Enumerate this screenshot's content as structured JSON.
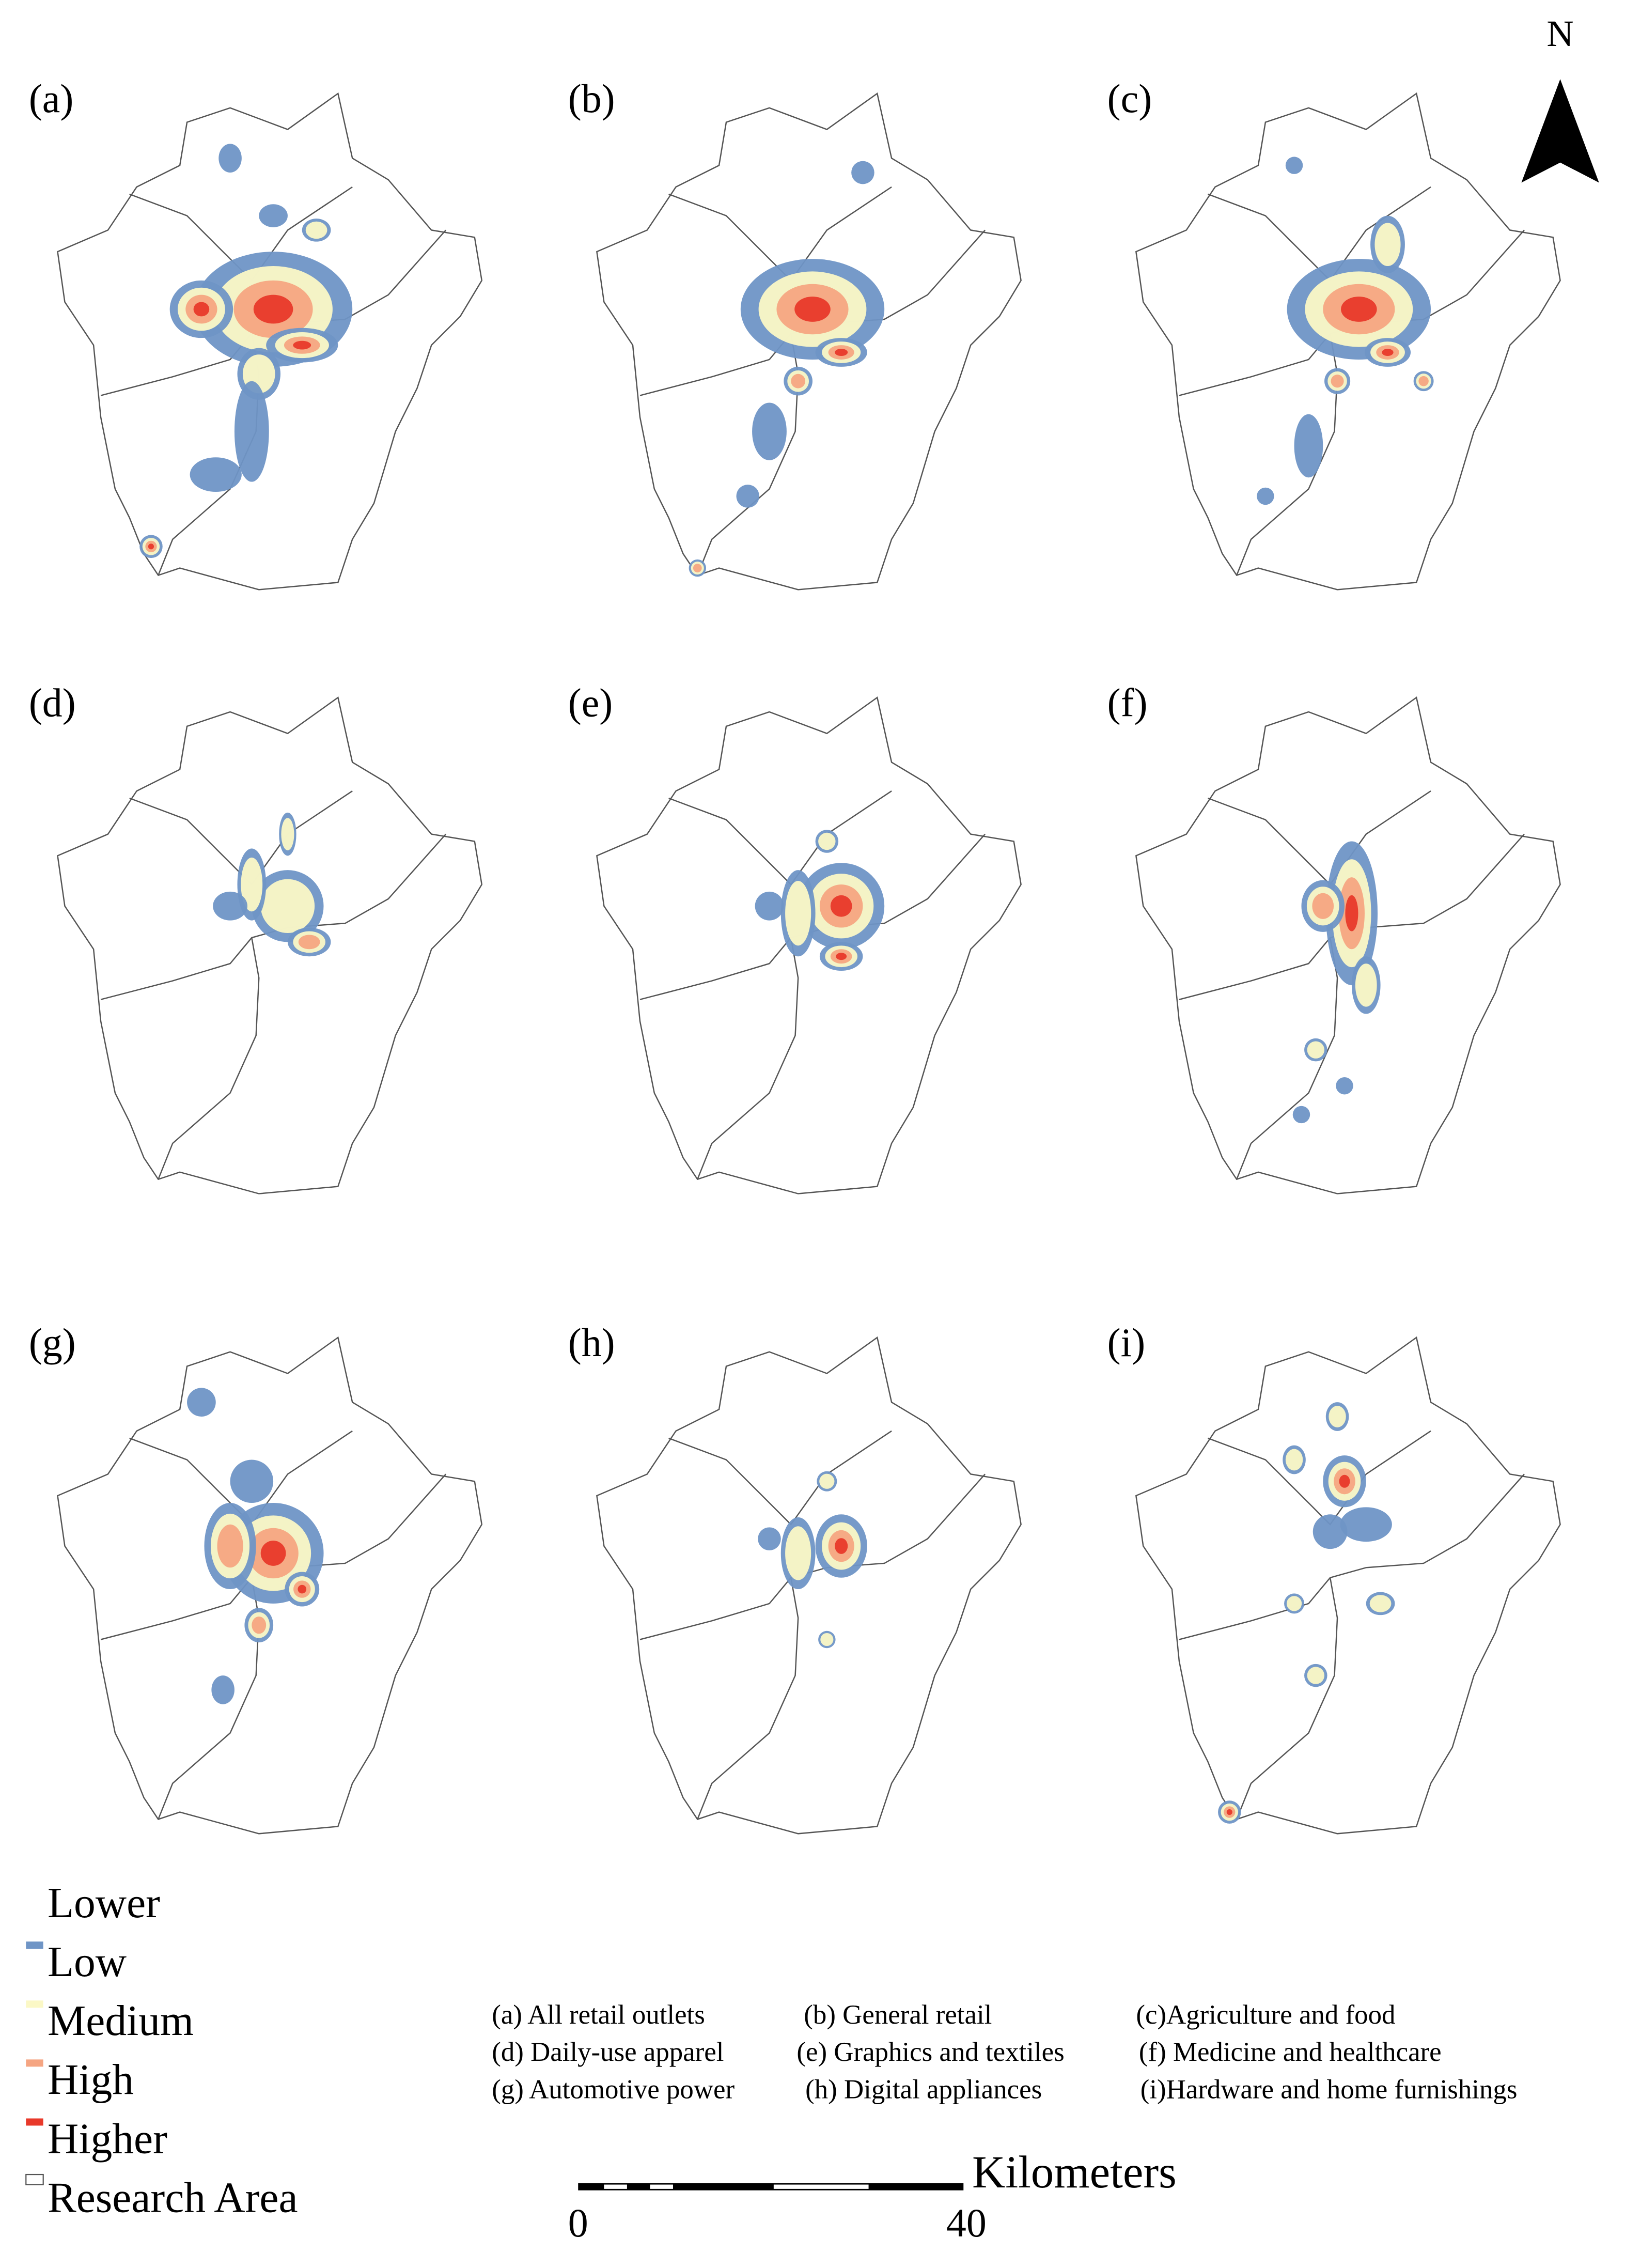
{
  "panels": [
    {
      "label": "(a)"
    },
    {
      "label": "(b)"
    },
    {
      "label": "(c)"
    },
    {
      "label": "(d)"
    },
    {
      "label": "(e)"
    },
    {
      "label": "(f)"
    },
    {
      "label": "(g)"
    },
    {
      "label": "(h)"
    },
    {
      "label": "(i)"
    }
  ],
  "legend": [
    {
      "label": "Lower",
      "color": "#ffffff"
    },
    {
      "label": "Low",
      "color": "#6f95c6"
    },
    {
      "label": "Medium",
      "color": "#fbf8c6"
    },
    {
      "label": "High",
      "color": "#f5a582"
    },
    {
      "label": "Higher",
      "color": "#e8392a"
    },
    {
      "label": "Research Area",
      "color": "#ffffff"
    }
  ],
  "captions": [
    "(a) All retail outlets",
    "(b) General retail",
    "(c)Agriculture and food",
    "(d) Daily-use apparel",
    "(e) Graphics and textiles",
    "(f) Medicine and healthcare",
    "(g) Automotive power",
    "(h) Digital appliances",
    "(i)Hardware and home furnishings"
  ],
  "scale_bar": {
    "unit": "Kilometers",
    "start": "0",
    "end": "40"
  },
  "north": "N"
}
